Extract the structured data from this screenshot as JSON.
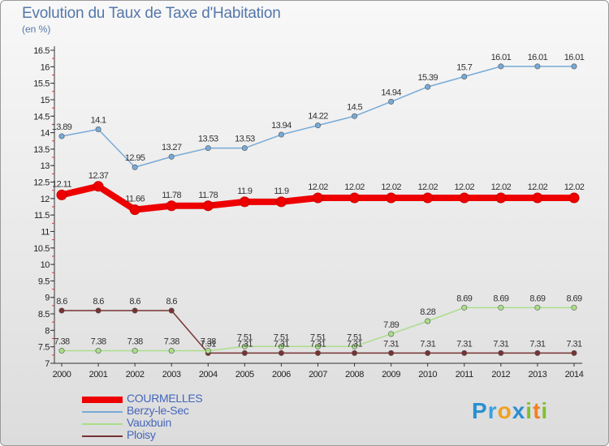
{
  "title": "Evolution du Taux de Taxe d'Habitation",
  "subtitle": "(en %)",
  "logo": {
    "text": "Proxiti"
  },
  "chart_data": {
    "type": "line",
    "x": [
      "2000",
      "2001",
      "2002",
      "2003",
      "2004",
      "2005",
      "2006",
      "2007",
      "2008",
      "2009",
      "2010",
      "2011",
      "2012",
      "2013",
      "2014"
    ],
    "ylim": [
      7,
      16.5
    ],
    "yticks": [
      "7",
      "7.5",
      "8",
      "8.5",
      "9",
      "9.5",
      "10",
      "10.5",
      "11",
      "11.5",
      "12",
      "12.5",
      "13",
      "13.5",
      "14",
      "14.5",
      "15",
      "15.5",
      "16",
      "16.5"
    ],
    "grid": false,
    "legend_position": "bottom-left",
    "series": [
      {
        "name": "COURMELLES",
        "color": "#ee0000",
        "values": [
          12.11,
          12.37,
          11.66,
          11.78,
          11.78,
          11.9,
          11.9,
          12.02,
          12.02,
          12.02,
          12.02,
          12.02,
          12.02,
          12.02,
          12.02
        ],
        "labels": [
          "12.11",
          "12.37",
          "11.66",
          "11.78",
          "11.78",
          "11.9",
          "11.9",
          "12.02",
          "12.02",
          "12.02",
          "12.02",
          "12.02",
          "12.02",
          "12.02",
          "12.02"
        ]
      },
      {
        "name": "Berzy-le-Sec",
        "color": "#77aad8",
        "values": [
          13.89,
          14.1,
          12.95,
          13.27,
          13.53,
          13.53,
          13.94,
          14.22,
          14.5,
          14.94,
          15.39,
          15.7,
          16.01,
          16.01,
          16.01
        ],
        "labels": [
          "13.89",
          "14.1",
          "12.95",
          "13.27",
          "13.53",
          "13.53",
          "13.94",
          "14.22",
          "14.5",
          "14.94",
          "15.39",
          "15.7",
          "16.01",
          "16.01",
          "16.01"
        ]
      },
      {
        "name": "Vauxbuin",
        "color": "#aade88",
        "values": [
          7.38,
          7.38,
          7.38,
          7.38,
          7.38,
          7.51,
          7.51,
          7.51,
          7.51,
          7.89,
          8.28,
          8.69,
          8.69,
          8.69,
          8.69
        ],
        "labels": [
          "7.38",
          "7.38",
          "7.38",
          "7.38",
          "7.38",
          "7.51",
          "7.51",
          "7.51",
          "7.51",
          "7.89",
          "8.28",
          "8.69",
          "8.69",
          "8.69",
          "8.69"
        ]
      },
      {
        "name": "Ploisy",
        "color": "#773333",
        "values": [
          8.6,
          8.6,
          8.6,
          8.6,
          7.31,
          7.31,
          7.31,
          7.31,
          7.31,
          7.31,
          7.31,
          7.31,
          7.31,
          7.31,
          7.31
        ],
        "labels": [
          "8.6",
          "8.6",
          "8.6",
          "8.6",
          "7.31",
          "7.31",
          "7.31",
          "7.31",
          "7.31",
          "7.31",
          "7.31",
          "7.31",
          "7.31",
          "7.31",
          "7.31"
        ]
      }
    ]
  }
}
